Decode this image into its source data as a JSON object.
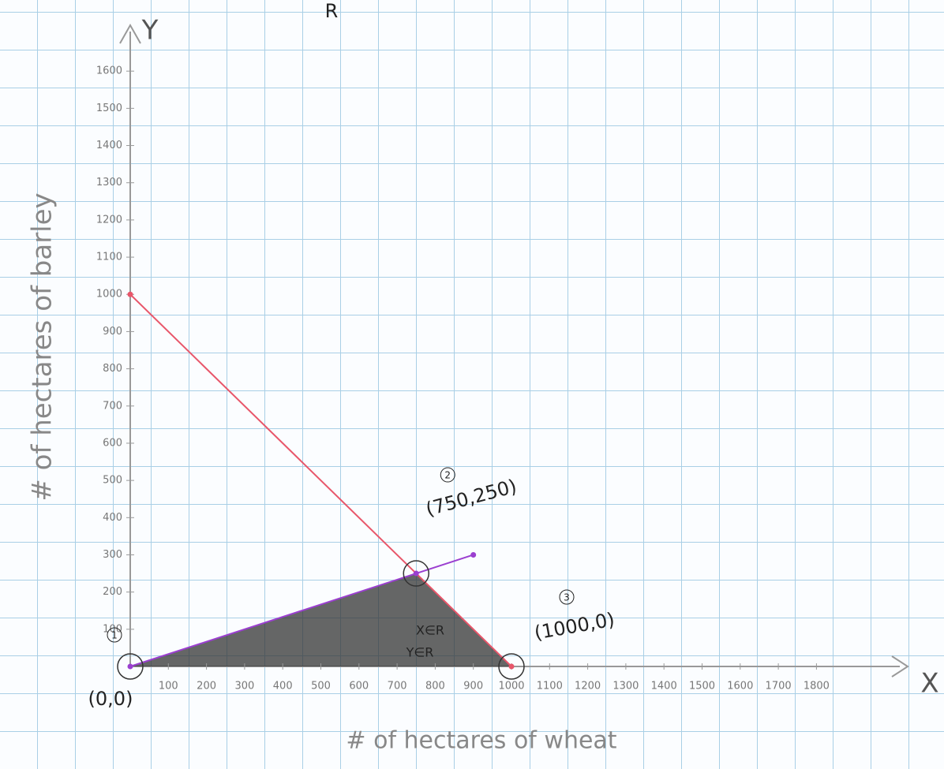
{
  "chart_data": {
    "type": "line",
    "title": "R",
    "x_label": "# of hectares of wheat",
    "y_label": "# of hectares of barley",
    "x_axis_name": "X",
    "y_axis_name": "Y",
    "xlim": [
      0,
      2000
    ],
    "ylim": [
      0,
      1700
    ],
    "xticks": [
      100,
      200,
      300,
      400,
      500,
      600,
      700,
      800,
      900,
      1000,
      1100,
      1200,
      1300,
      1400,
      1500,
      1600,
      1700,
      1800
    ],
    "yticks": [
      100,
      200,
      300,
      400,
      500,
      600,
      700,
      800,
      900,
      1000,
      1100,
      1200,
      1300,
      1400,
      1500,
      1600
    ],
    "series": [
      {
        "color": "#e8566a",
        "x": [
          0,
          1000
        ],
        "values": [
          1000,
          0
        ]
      },
      {
        "color": "#9b3fd0",
        "x": [
          0,
          750,
          900
        ],
        "values": [
          0,
          250,
          300
        ]
      }
    ],
    "points": [
      {
        "marker": "1",
        "label": "(0,0)",
        "x": 0,
        "y": 0
      },
      {
        "marker": "2",
        "label": "(750,250)",
        "x": 750,
        "y": 250
      },
      {
        "marker": "3",
        "label": "(1000,0)",
        "x": 1000,
        "y": 0
      }
    ],
    "region_color": "#333333",
    "annotations": [
      "X∈R",
      "Y∈R"
    ]
  }
}
